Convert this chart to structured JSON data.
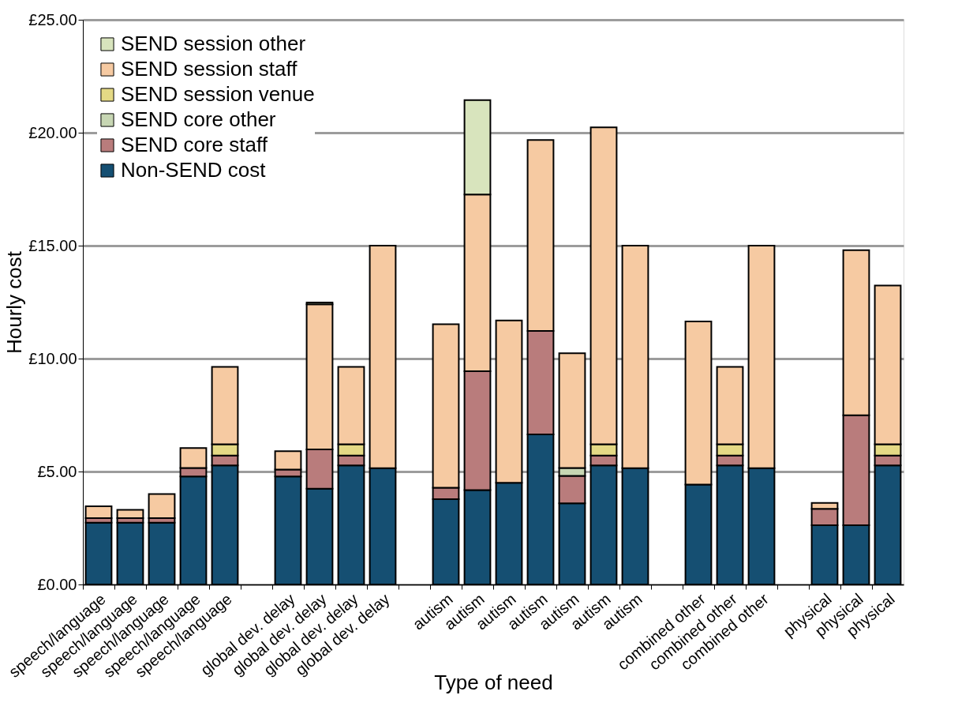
{
  "chart_data": {
    "type": "bar",
    "stacked": true,
    "xlabel": "Type of need",
    "ylabel": "Hourly cost",
    "categories": [
      "speech/language",
      "speech/language",
      "speech/language",
      "speech/language",
      "speech/language",
      null,
      "global dev. delay",
      "global dev. delay",
      "global dev. delay",
      "global dev. delay",
      null,
      "autism",
      "autism",
      "autism",
      "autism",
      "autism",
      "autism",
      "autism",
      null,
      "combined other",
      "combined other",
      "combined other",
      null,
      "physical",
      "physical",
      "physical"
    ],
    "series": [
      {
        "name": "Non-SEND cost",
        "color": "#154f72",
        "values": [
          2.74,
          2.74,
          2.74,
          4.78,
          5.27,
          null,
          4.78,
          4.24,
          5.27,
          5.15,
          null,
          3.78,
          4.18,
          4.5,
          6.64,
          3.59,
          5.27,
          5.15,
          null,
          4.42,
          5.27,
          5.15,
          null,
          2.62,
          2.62,
          5.27
        ]
      },
      {
        "name": "SEND core staff",
        "color": "#b97c7c",
        "values": [
          0.2,
          0.2,
          0.2,
          0.38,
          0.44,
          null,
          0.31,
          1.74,
          0.44,
          null,
          null,
          0.5,
          5.26,
          null,
          4.58,
          1.22,
          0.44,
          null,
          null,
          null,
          0.44,
          null,
          null,
          0.73,
          4.87,
          0.44
        ]
      },
      {
        "name": "SEND core other",
        "color": "#c7d6b3",
        "values": [
          null,
          null,
          null,
          null,
          null,
          null,
          null,
          null,
          null,
          null,
          null,
          null,
          null,
          null,
          null,
          0.35,
          null,
          null,
          null,
          null,
          null,
          null,
          null,
          null,
          null,
          null
        ]
      },
      {
        "name": "SEND session venue",
        "color": "#e4d985",
        "values": [
          null,
          null,
          null,
          null,
          0.5,
          null,
          null,
          null,
          0.5,
          null,
          null,
          null,
          null,
          null,
          null,
          null,
          0.5,
          null,
          null,
          null,
          0.5,
          null,
          null,
          null,
          null,
          0.5
        ]
      },
      {
        "name": "SEND session staff",
        "color": "#f6caa2",
        "values": [
          0.52,
          0.36,
          1.06,
          0.88,
          3.42,
          null,
          0.81,
          6.42,
          3.42,
          9.85,
          null,
          7.24,
          7.82,
          7.19,
          8.46,
          5.08,
          14.03,
          9.85,
          null,
          7.22,
          3.42,
          9.85,
          null,
          0.26,
          7.31,
          7.02
        ]
      },
      {
        "name": "SEND session other",
        "color": "#d8e4bd",
        "values": [
          null,
          null,
          null,
          null,
          null,
          null,
          null,
          0.08,
          null,
          null,
          null,
          null,
          4.18,
          null,
          null,
          null,
          null,
          null,
          null,
          null,
          null,
          null,
          null,
          null,
          null,
          null
        ]
      }
    ],
    "ylim": [
      0,
      25
    ],
    "yticks": [
      {
        "value": 0,
        "label": "£0.00"
      },
      {
        "value": 5,
        "label": "£5.00"
      },
      {
        "value": 10,
        "label": "£10.00"
      },
      {
        "value": 15,
        "label": "£15.00"
      },
      {
        "value": 20,
        "label": "£20.00"
      },
      {
        "value": 25,
        "label": "£25.00"
      }
    ],
    "grid": "y",
    "legend": "top left"
  }
}
